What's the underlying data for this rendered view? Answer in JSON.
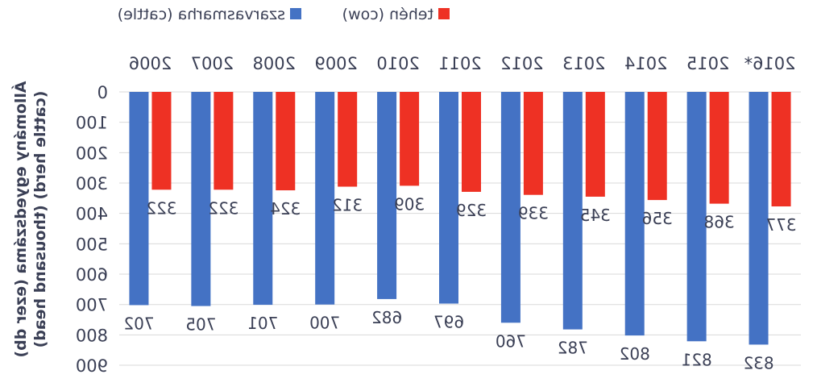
{
  "chart_data": {
    "type": "bar",
    "categories": [
      "2006",
      "2007",
      "2008",
      "2009",
      "2010",
      "2011",
      "2012",
      "2013",
      "2014",
      "2015",
      "2016*"
    ],
    "series": [
      {
        "name": "szarvasmarha (cattle)",
        "color": "#4472c4",
        "values": [
          702,
          705,
          701,
          700,
          682,
          697,
          760,
          782,
          802,
          821,
          832
        ]
      },
      {
        "name": "tehén (cow)",
        "color": "#ee3124",
        "values": [
          322,
          322,
          324,
          312,
          309,
          329,
          339,
          345,
          356,
          368,
          377
        ]
      }
    ],
    "title": "",
    "ylabel_line1": "Állomány egyedszáma (ezer db)",
    "ylabel_line2": "(cattle herd) (thousand head)",
    "ylim": [
      0,
      900
    ],
    "yticks": [
      0,
      100,
      200,
      300,
      400,
      500,
      600,
      700,
      800,
      900
    ],
    "grid": true,
    "legend_position": "top",
    "orientation": "horizontally mirrored, category axis at top, values grow downward"
  }
}
